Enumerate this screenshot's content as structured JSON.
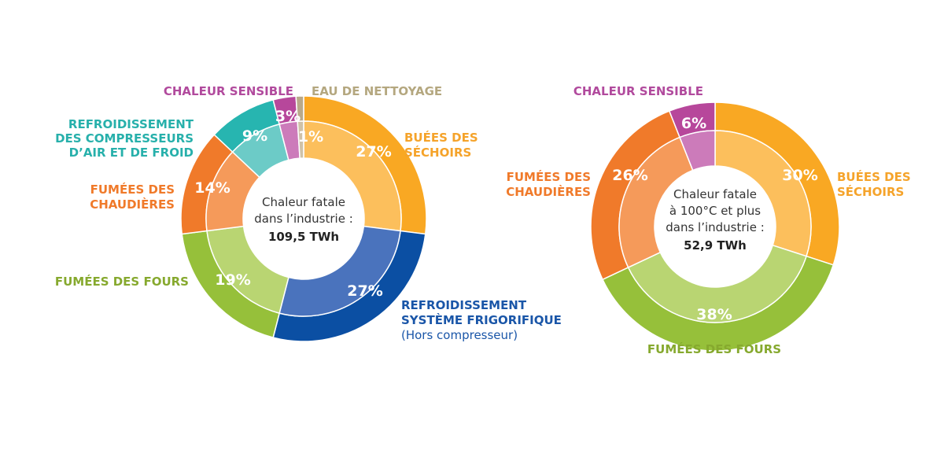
{
  "chart_data": [
    {
      "type": "pie",
      "variant": "donut",
      "center": {
        "line1": "Chaleur fatale",
        "line2": "dans l’industrie :",
        "value": "109,5 TWh"
      },
      "slices": [
        {
          "value": 27,
          "label": "27%",
          "name_lines": [
            "BUÉES DES",
            "SÉCHOIRS"
          ],
          "outer_color": "#f9a823",
          "inner_color": "#fcbf5c",
          "label_color": "#f5a32a"
        },
        {
          "value": 27,
          "label": "27%",
          "name_lines": [
            "REFROIDISSEMENT",
            "SYSTÈME FRIGORIFIQUE",
            "(Hors compresseur)"
          ],
          "outer_color": "#0b4fa3",
          "inner_color": "#4a73bd",
          "label_color": "#1a56a8"
        },
        {
          "value": 19,
          "label": "19%",
          "name_lines": [
            "FUMÉES DES FOURS"
          ],
          "outer_color": "#96c03a",
          "inner_color": "#b9d572",
          "label_color": "#86a92e"
        },
        {
          "value": 14,
          "label": "14%",
          "name_lines": [
            "FUMÉES DES",
            "CHAUDIÈRES"
          ],
          "outer_color": "#f07a2a",
          "inner_color": "#f59a5a",
          "label_color": "#f07a2a"
        },
        {
          "value": 9,
          "label": "9%",
          "name_lines": [
            "REFROIDISSEMENT",
            "DES COMPRESSEURS",
            "D’AIR ET DE FROID"
          ],
          "outer_color": "#27b5b0",
          "inner_color": "#6ccbc7",
          "label_color": "#27b0ab"
        },
        {
          "value": 3,
          "label": "3%",
          "name_lines": [
            "CHALEUR SENSIBLE"
          ],
          "outer_color": "#b7479b",
          "inner_color": "#cc7bba",
          "label_color": "#b14a9d"
        },
        {
          "value": 1,
          "label": "1%",
          "name_lines": [
            "EAU DE NETTOYAGE"
          ],
          "outer_color": "#b9a98a",
          "inner_color": "#cfc2a8",
          "label_color": "#b4a77f"
        }
      ]
    },
    {
      "type": "pie",
      "variant": "donut",
      "center": {
        "line1": "Chaleur fatale",
        "line2": "à 100°C et plus",
        "line3": "dans l’industrie :",
        "value": "52,9 TWh"
      },
      "slices": [
        {
          "value": 30,
          "label": "30%",
          "name_lines": [
            "BUÉES DES",
            "SÉCHOIRS"
          ],
          "outer_color": "#f9a823",
          "inner_color": "#fcbf5c",
          "label_color": "#f5a32a"
        },
        {
          "value": 38,
          "label": "38%",
          "name_lines": [
            "FUMÉES DES FOURS"
          ],
          "outer_color": "#96c03a",
          "inner_color": "#b9d572",
          "label_color": "#86a92e"
        },
        {
          "value": 26,
          "label": "26%",
          "name_lines": [
            "FUMÉES DES",
            "CHAUDIÈRES"
          ],
          "outer_color": "#f07a2a",
          "inner_color": "#f59a5a",
          "label_color": "#f07a2a"
        },
        {
          "value": 6,
          "label": "6%",
          "name_lines": [
            "CHALEUR SENSIBLE"
          ],
          "outer_color": "#b7479b",
          "inner_color": "#cc7bba",
          "label_color": "#b14a9d"
        }
      ]
    }
  ]
}
